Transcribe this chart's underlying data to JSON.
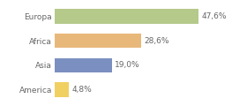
{
  "categories": [
    "Europa",
    "Africa",
    "Asia",
    "America"
  ],
  "values": [
    47.6,
    28.6,
    19.0,
    4.8
  ],
  "labels": [
    "47,6%",
    "28,6%",
    "19,0%",
    "4,8%"
  ],
  "bar_colors": [
    "#b5c98a",
    "#e8b87a",
    "#7b8fc0",
    "#f0d060"
  ],
  "background_color": "#ffffff",
  "xlim": [
    0,
    62
  ],
  "bar_height": 0.6,
  "label_fontsize": 6.5,
  "category_fontsize": 6.5,
  "text_color": "#666666"
}
